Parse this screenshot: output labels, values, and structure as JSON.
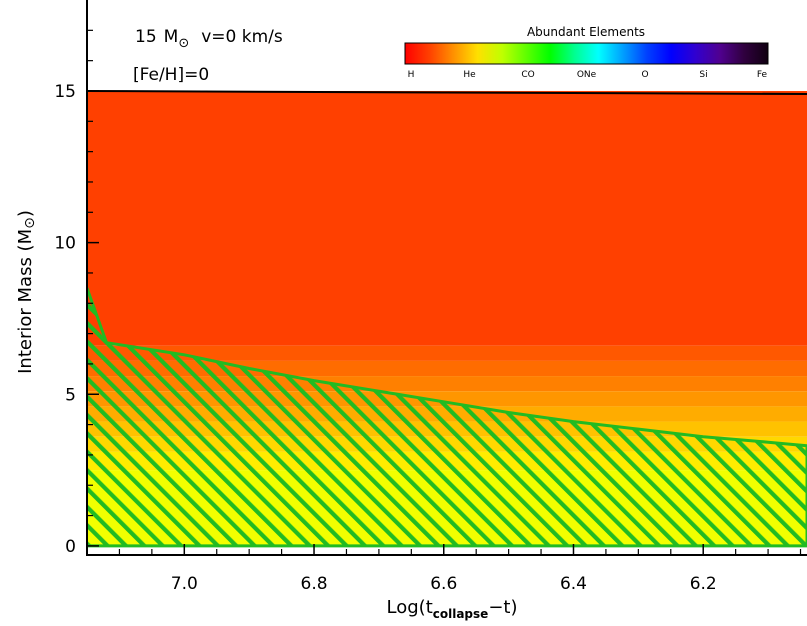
{
  "chart_data": {
    "type": "area",
    "title": "",
    "xlabel": {
      "main": "Log(t",
      "sub": "collapse",
      "tail": "−t)"
    },
    "ylabel": {
      "main": "Interior Mass (M",
      "sun": "⊙",
      "tail": ")"
    },
    "xlim": [
      7.15,
      6.04
    ],
    "ylim": [
      -0.3,
      18
    ],
    "xticks": [
      7.0,
      6.8,
      6.6,
      6.4,
      6.2
    ],
    "xtick_labels": [
      "7.0",
      "6.8",
      "6.6",
      "6.4",
      "6.2"
    ],
    "yticks": [
      0,
      5,
      10,
      15
    ],
    "ytick_labels": [
      "0",
      "5",
      "10",
      "15"
    ],
    "annotations": {
      "mass_value": "15",
      "mass_unit": "M",
      "sun_symbol": "⊙",
      "velocity": "v=0 km/s",
      "metallicity": "[Fe/H]=0"
    },
    "surface_mass": {
      "x": [
        7.15,
        6.04
      ],
      "y": [
        15.0,
        14.9
      ]
    },
    "convective_boundary": {
      "x": [
        7.15,
        7.12,
        7.0,
        6.9,
        6.8,
        6.7,
        6.6,
        6.5,
        6.4,
        6.3,
        6.2,
        6.1,
        6.04
      ],
      "y": [
        8.5,
        6.7,
        6.3,
        5.85,
        5.45,
        5.1,
        4.75,
        4.4,
        4.1,
        3.85,
        3.6,
        3.42,
        3.3
      ]
    },
    "abundance_bands": [
      {
        "y0": 6.6,
        "y1": 15.0,
        "color": "#ff4000"
      },
      {
        "y0": 6.1,
        "y1": 6.6,
        "color": "#ff5800"
      },
      {
        "y0": 5.6,
        "y1": 6.1,
        "color": "#ff6c00"
      },
      {
        "y0": 5.1,
        "y1": 5.6,
        "color": "#ff8000"
      },
      {
        "y0": 4.6,
        "y1": 5.1,
        "color": "#ff9600"
      },
      {
        "y0": 4.1,
        "y1": 4.6,
        "color": "#ffac00"
      },
      {
        "y0": 3.6,
        "y1": 4.1,
        "color": "#ffc200"
      },
      {
        "y0": 3.1,
        "y1": 3.6,
        "color": "#ffd800"
      },
      {
        "y0": 2.5,
        "y1": 3.1,
        "color": "#ffec00"
      },
      {
        "y0": 0.0,
        "y1": 2.5,
        "color": "#f2ff00"
      }
    ],
    "hatch_color": "#22bb22",
    "colorbar": {
      "title": "Abundant Elements",
      "labels": [
        "H",
        "He",
        "CO",
        "ONe",
        "O",
        "Si",
        "Fe"
      ],
      "stops": [
        "#ff0000",
        "#ff4000",
        "#ff9000",
        "#ffe000",
        "#c0ff00",
        "#60ff00",
        "#00ff00",
        "#00ff90",
        "#00ffff",
        "#00a0ff",
        "#0040ff",
        "#0000ff",
        "#3000d0",
        "#500090",
        "#300040",
        "#100010"
      ]
    }
  }
}
